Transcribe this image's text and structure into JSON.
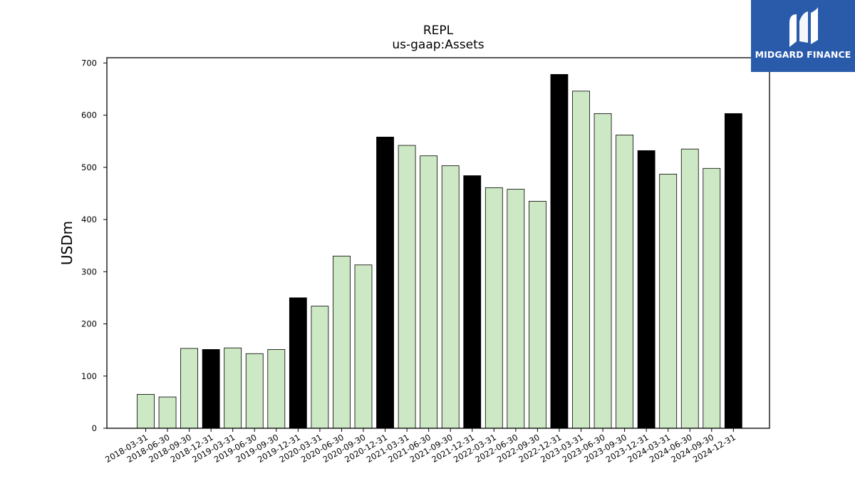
{
  "brand": {
    "name": "MIDGARD FINANCE",
    "logo_icon": "midgard-logo-icon",
    "bg_color": "#2a5bab"
  },
  "chart_data": {
    "type": "bar",
    "title": "REPL",
    "subtitle": "us-gaap:Assets",
    "xlabel": "",
    "ylabel": "USDm",
    "ylim": [
      0,
      710
    ],
    "yticks": [
      0,
      100,
      200,
      300,
      400,
      500,
      600,
      700
    ],
    "grid": false,
    "colors": {
      "quarter": "#cde8c4",
      "year_end": "#000000",
      "edge": "#000000"
    },
    "categories": [
      "2018-03-31",
      "2018-06-30",
      "2018-09-30",
      "2018-12-31",
      "2019-03-31",
      "2019-06-30",
      "2019-09-30",
      "2019-12-31",
      "2020-03-31",
      "2020-06-30",
      "2020-09-30",
      "2020-12-31",
      "2021-03-31",
      "2021-06-30",
      "2021-09-30",
      "2021-12-31",
      "2022-03-31",
      "2022-06-30",
      "2022-09-30",
      "2022-12-31",
      "2023-03-31",
      "2023-06-30",
      "2023-09-30",
      "2023-12-31",
      "2024-03-31",
      "2024-06-30",
      "2024-09-30",
      "2024-12-31"
    ],
    "values": [
      65,
      60,
      153,
      151,
      154,
      143,
      151,
      250,
      234,
      330,
      313,
      558,
      542,
      522,
      503,
      484,
      461,
      458,
      435,
      678,
      646,
      603,
      562,
      532,
      487,
      535,
      498,
      603
    ]
  }
}
